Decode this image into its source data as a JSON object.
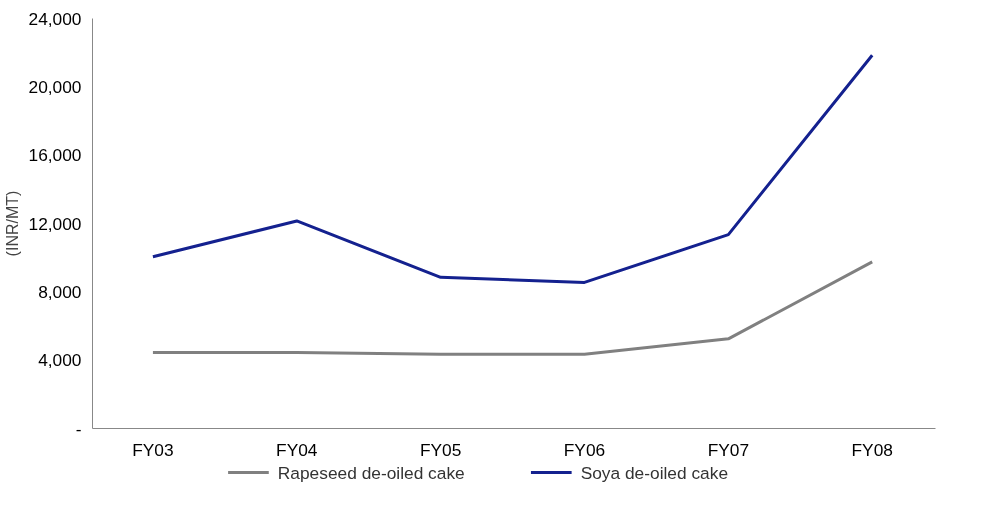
{
  "chart_data": {
    "type": "line",
    "ylabel": "(INR/MT)",
    "categories": [
      "FY03",
      "FY04",
      "FY05",
      "FY06",
      "FY07",
      "FY08"
    ],
    "series": [
      {
        "name": "Rapeseed de-oiled cake",
        "color": "#808080",
        "values": [
          4450,
          4450,
          4350,
          4350,
          5250,
          9750
        ]
      },
      {
        "name": "Soya de-oiled cake",
        "color": "#14218f",
        "values": [
          10050,
          12150,
          8850,
          8550,
          11350,
          21850
        ]
      }
    ],
    "ylim": [
      0,
      24000
    ],
    "yticks": [
      {
        "value": 0,
        "label": "-"
      },
      {
        "value": 4000,
        "label": "4,000"
      },
      {
        "value": 8000,
        "label": "8,000"
      },
      {
        "value": 12000,
        "label": "12,000"
      },
      {
        "value": 16000,
        "label": "16,000"
      },
      {
        "value": 20000,
        "label": "20,000"
      },
      {
        "value": 24000,
        "label": "24,000"
      }
    ],
    "grid": false,
    "legend": "bottom",
    "marker": "none",
    "line_style": "solid"
  }
}
